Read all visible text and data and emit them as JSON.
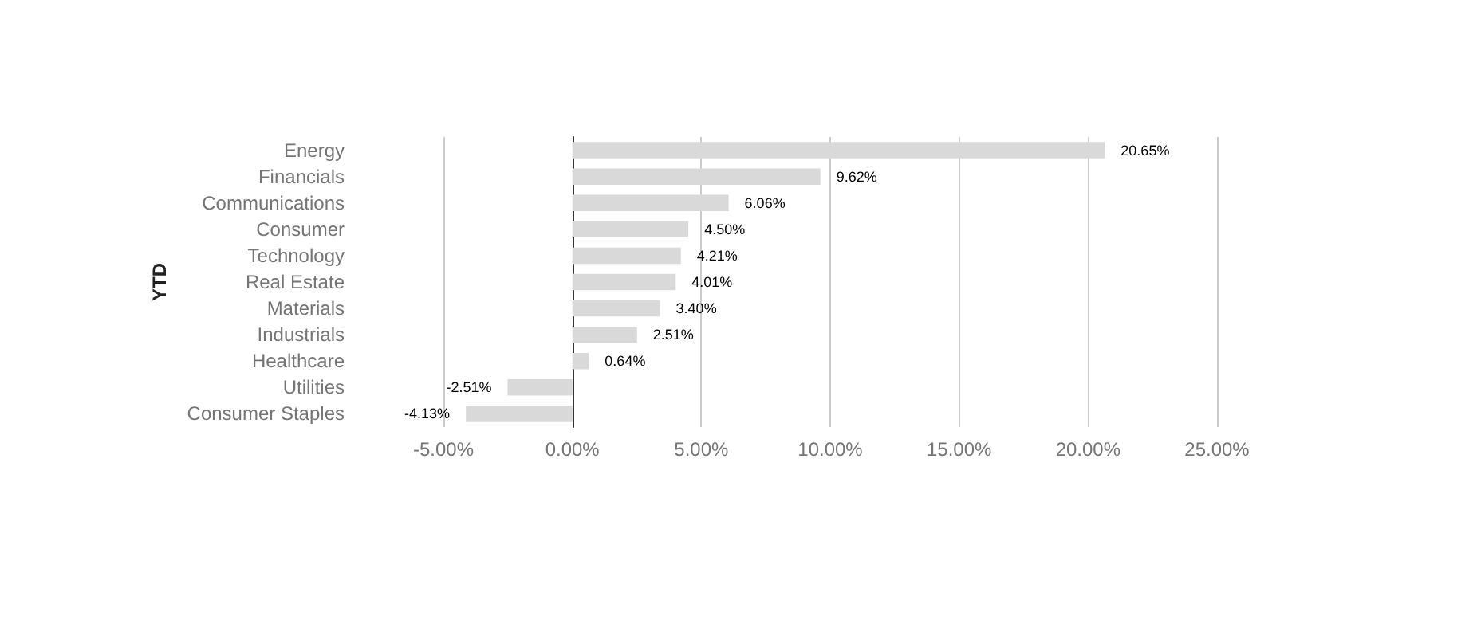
{
  "chart_data": {
    "type": "bar",
    "orientation": "horizontal",
    "ylabel": "YTD",
    "categories": [
      "Energy",
      "Financials",
      "Communications",
      "Consumer",
      "Technology",
      "Real Estate",
      "Materials",
      "Industrials",
      "Healthcare",
      "Utilities",
      "Consumer Staples"
    ],
    "values": [
      20.65,
      9.62,
      6.06,
      4.5,
      4.21,
      4.01,
      3.4,
      2.51,
      0.64,
      -2.51,
      -4.13
    ],
    "value_labels": [
      "20.65%",
      "9.62%",
      "6.06%",
      "4.50%",
      "4.21%",
      "4.01%",
      "3.40%",
      "2.51%",
      "0.64%",
      "-2.51%",
      "-4.13%"
    ],
    "color": "#d9d9d9",
    "xlim": [
      -5,
      25
    ],
    "xticks": [
      {
        "value": -5,
        "label": "-5.00%"
      },
      {
        "value": 0,
        "label": "0.00%"
      },
      {
        "value": 5,
        "label": "5.00%"
      },
      {
        "value": 10,
        "label": "10.00%"
      },
      {
        "value": 15,
        "label": "15.00%"
      },
      {
        "value": 20,
        "label": "20.00%"
      },
      {
        "value": 25,
        "label": "25.00%"
      }
    ],
    "grid": "x"
  }
}
